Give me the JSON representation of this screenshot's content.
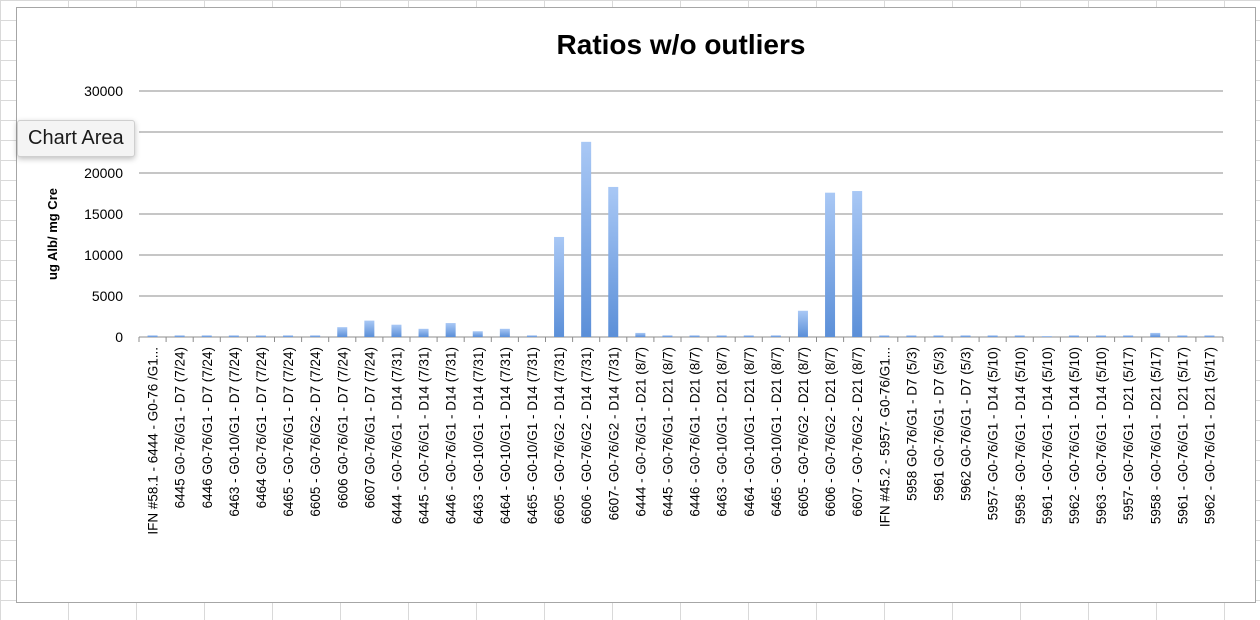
{
  "tooltip": "Chart Area",
  "chart_data": {
    "type": "bar",
    "title": "Ratios w/o outliers",
    "xlabel": "",
    "ylabel": "ug Alb/ mg Cre",
    "ylim": [
      0,
      30000
    ],
    "yticks": [
      0,
      5000,
      10000,
      15000,
      20000,
      25000,
      30000
    ],
    "ytick_labels": [
      "0",
      "5000",
      "10000",
      "15000",
      "20000",
      "25000",
      "30000"
    ],
    "grid": true,
    "legend": "none",
    "bar_color": "#5b8fd8",
    "categories": [
      "IFN #58.1 - 6444 - G0-76 /G1...",
      "6445 G0-76/G1 - D7 (7/24)",
      "6446 G0-76/G1 - D7 (7/24)",
      "6463 - G0-10/G1 - D7 (7/24)",
      "6464 G0-76/G1 - D7 (7/24)",
      "6465 - G0-76/G1 - D7 (7/24)",
      "6605 - G0-76/G2 - D7 (7/24)",
      "6606 G0-76/G1 - D7 (7/24)",
      "6607 G0-76/G1 - D7 (7/24)",
      "6444 - G0-76/G1 - D14 (7/31)",
      "6445 - G0-76/G1 - D14 (7/31)",
      "6446 - G0-76/G1 - D14 (7/31)",
      "6463 - G0-10/G1 - D14 (7/31)",
      "6464 - G0-10/G1 - D14 (7/31)",
      "6465 - G0-10/G1 - D14 (7/31)",
      "6605 - G0-76/G2 - D14 (7/31)",
      "6606 - G0-76/G2 - D14 (7/31)",
      "6607- G0-76/G2 - D14 (7/31)",
      "6444 - G0-76/G1 - D21 (8/7)",
      "6445 - G0-76/G1 - D21 (8/7)",
      "6446 - G0-76/G1 - D21 (8/7)",
      "6463 - G0-10/G1 - D21 (8/7)",
      "6464 - G0-10/G1 - D21 (8/7)",
      "6465 - G0-10/G1 - D21 (8/7)",
      "6605 - G0-76/G2 - D21 (8/7)",
      "6606 - G0-76/G2 - D21 (8/7)",
      "6607 - G0-76/G2 - D21 (8/7)",
      "IFN #45.2 - 5957- G0-76/G1...",
      "5958 G0-76/G1 - D7 (5/3)",
      "5961 G0-76/G1 - D7 (5/3)",
      "5962 G0-76/G1 - D7 (5/3)",
      "5957- G0-76/G1 - D14 (5/10)",
      "5958 - G0-76/G1 - D14 (5/10)",
      "5961 - G0-76/G1 - D14 (5/10)",
      "5962 - G0-76/G1 - D14 (5/10)",
      "5963 - G0-76/G1 - D14 (5/10)",
      "5957- G0-76/G1 - D21 (5/17)",
      "5958 - G0-76/G1 - D21 (5/17)",
      "5961 - G0-76/G1 - D21 (5/17)",
      "5962 - G0-76/G1 - D21 (5/17)"
    ],
    "values": [
      200,
      200,
      200,
      200,
      200,
      200,
      200,
      1200,
      2000,
      1500,
      1000,
      1700,
      700,
      1000,
      200,
      12200,
      23800,
      18300,
      500,
      200,
      200,
      200,
      200,
      200,
      3200,
      17600,
      17800,
      200,
      200,
      200,
      200,
      200,
      200,
      100,
      200,
      200,
      200,
      500,
      200,
      200
    ]
  }
}
